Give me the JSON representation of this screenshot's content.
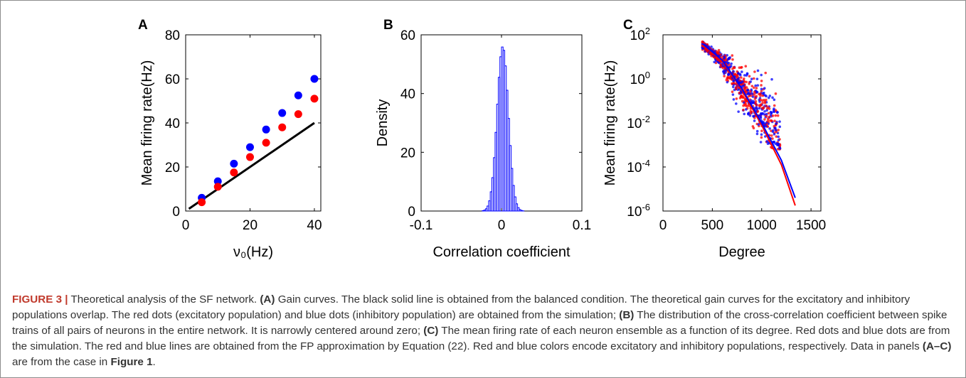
{
  "chart_data": [
    {
      "panel_letter": "A",
      "type": "scatter",
      "xlabel": "ν₀(Hz)",
      "ylabel": "Mean firing rate(Hz)",
      "xlim": [
        0,
        42
      ],
      "ylim": [
        0,
        80
      ],
      "xticks": [
        0,
        20,
        40
      ],
      "yticks": [
        0,
        20,
        40,
        60,
        80
      ],
      "series": [
        {
          "color": "#0000ff",
          "x": [
            5,
            10,
            15,
            20,
            25,
            30,
            35,
            40
          ],
          "y": [
            6,
            13.5,
            21.5,
            29,
            37,
            44.5,
            52.5,
            60
          ]
        },
        {
          "color": "#ff0000",
          "x": [
            5,
            10,
            15,
            20,
            25,
            30,
            35,
            40
          ],
          "y": [
            4,
            11,
            17.5,
            24.5,
            31,
            38,
            44,
            51
          ]
        }
      ],
      "lines": [
        {
          "color": "#000000",
          "x": [
            1,
            40
          ],
          "y": [
            1,
            40
          ]
        }
      ]
    },
    {
      "panel_letter": "B",
      "type": "bar",
      "xlabel": "Correlation coefficient",
      "ylabel": "Density",
      "xlim": [
        -0.1,
        0.1
      ],
      "ylim": [
        0,
        60
      ],
      "xticks": [
        "-0.1",
        "0",
        "0.1"
      ],
      "yticks": [
        0,
        20,
        40,
        60
      ],
      "histogram": {
        "center": 0.0015,
        "sd": 0.007,
        "peak": 56,
        "bin_width": 0.002,
        "color": "#0000ff"
      }
    },
    {
      "panel_letter": "C",
      "type": "scatter",
      "xlabel": "Degree",
      "ylabel": "Mean firing rate(Hz)",
      "xlim": [
        0,
        1600
      ],
      "ylim_log10": [
        -6,
        2
      ],
      "xticks": [
        0,
        500,
        1000,
        1500
      ],
      "yticks": [
        "10^2",
        "10^0",
        "10^-2",
        "10^-4",
        "10^-6"
      ],
      "lines": [
        {
          "color": "#ff0000",
          "x": [
            400,
            600,
            800,
            1000,
            1200,
            1340
          ],
          "log10_y": [
            1.55,
            0.8,
            -0.5,
            -2.1,
            -3.9,
            -5.75
          ]
        },
        {
          "color": "#0000ff",
          "x": [
            400,
            600,
            800,
            1000,
            1200,
            1340
          ],
          "log10_y": [
            1.6,
            0.85,
            -0.45,
            -2.0,
            -3.7,
            -5.4
          ]
        }
      ],
      "series": [
        {
          "color": "#ff0000",
          "description_points": "dense cloud"
        },
        {
          "color": "#0000ff",
          "description_points": "dense cloud"
        }
      ]
    }
  ],
  "caption": {
    "figure_label": "FIGURE 3 |",
    "segments": [
      {
        "t": " Theoretical analysis of the SF network. ",
        "b": false
      },
      {
        "t": "(A)",
        "b": true
      },
      {
        "t": " Gain curves. The black solid line is obtained from the balanced condition. The theoretical gain curves for the excitatory and inhibitory populations overlap. The red dots (excitatory population) and blue dots (inhibitory population) are obtained from the simulation; ",
        "b": false
      },
      {
        "t": "(B)",
        "b": true
      },
      {
        "t": " The distribution of the cross-correlation coefficient between spike trains of all pairs of neurons in the entire network. It is narrowly centered around zero; ",
        "b": false
      },
      {
        "t": "(C)",
        "b": true
      },
      {
        "t": " The mean firing rate of each neuron ensemble as a function of its degree. Red dots and blue dots are from the simulation. The red and blue lines are obtained from the FP approximation by Equation (22). Red and blue colors encode excitatory and inhibitory populations, respectively. Data in panels ",
        "b": false
      },
      {
        "t": "(A–C)",
        "b": true
      },
      {
        "t": " are from the case in ",
        "b": false
      },
      {
        "t": "Figure 1",
        "b": true
      },
      {
        "t": ".",
        "b": false
      }
    ]
  }
}
